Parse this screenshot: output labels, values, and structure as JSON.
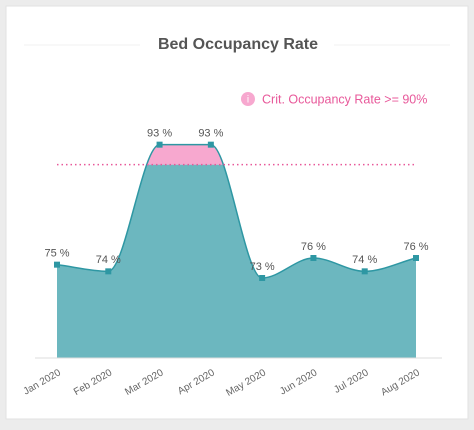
{
  "chart_data": {
    "type": "area",
    "title": "Bed Occupancy Rate",
    "categories": [
      "Jan 2020",
      "Feb 2020",
      "Mar 2020",
      "Apr 2020",
      "May 2020",
      "Jun 2020",
      "Jul 2020",
      "Aug 2020"
    ],
    "values": [
      75,
      74,
      93,
      93,
      73,
      76,
      74,
      76
    ],
    "value_labels": [
      "75 %",
      "74 %",
      "93 %",
      "93 %",
      "73 %",
      "76 %",
      "74 %",
      "76 %"
    ],
    "color": "#6cb7bf",
    "line_color": "#2e97a3",
    "threshold": 90,
    "threshold_color": "#f7a8cf",
    "threshold_line_color": "#e8589a",
    "legend": "Crit. Occupancy Rate >= 90%",
    "legend_icon": "i",
    "ylim": [
      61,
      100
    ]
  }
}
